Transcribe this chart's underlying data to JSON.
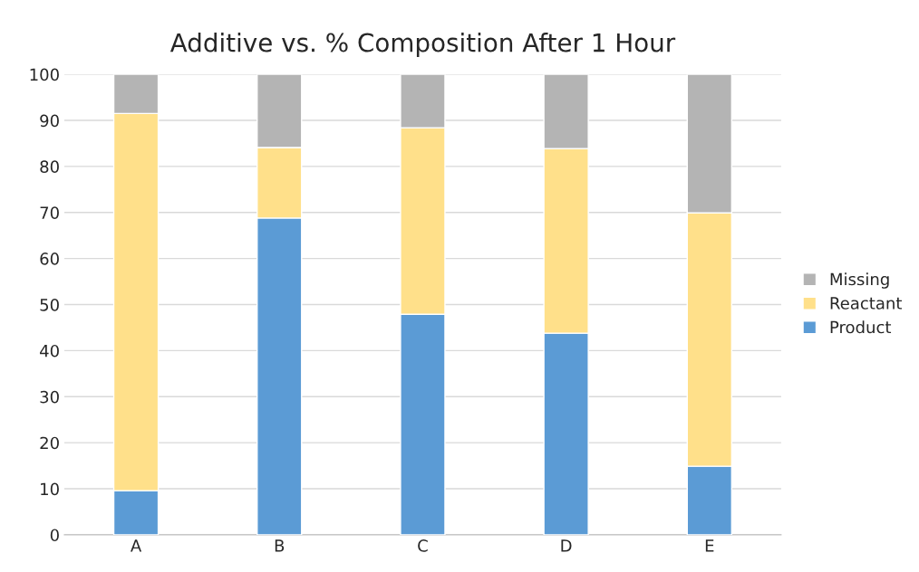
{
  "chart_data": {
    "type": "bar",
    "title": "Additive vs. % Composition After 1 Hour",
    "categories": [
      "A",
      "B",
      "C",
      "D",
      "E"
    ],
    "stacked": true,
    "series": [
      {
        "name": "Product",
        "color": "#5b9bd5",
        "values": [
          9.6,
          68.8,
          47.9,
          43.8,
          14.9
        ]
      },
      {
        "name": "Reactant",
        "color": "#ffe08a",
        "values": [
          81.9,
          15.3,
          40.5,
          40.1,
          55.0
        ]
      },
      {
        "name": "Missing",
        "color": "#b4b4b4",
        "values": [
          8.5,
          15.9,
          11.6,
          16.1,
          30.1
        ]
      }
    ],
    "ylim": [
      0,
      100
    ],
    "yticks": [
      0,
      10,
      20,
      30,
      40,
      50,
      60,
      70,
      80,
      90,
      100
    ],
    "grid": "y",
    "legend": "right"
  }
}
